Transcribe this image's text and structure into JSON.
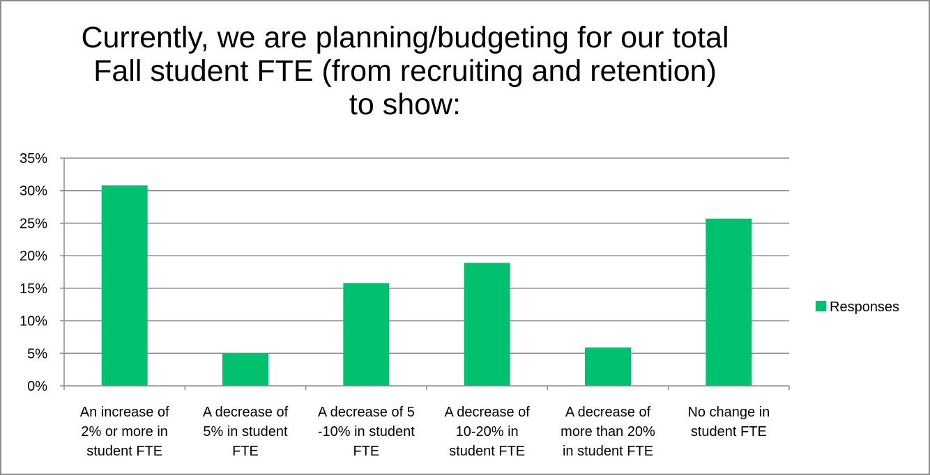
{
  "chart_data": {
    "type": "bar",
    "title": "Currently, we are planning/budgeting for our total\nFall student FTE (from recruiting and retention)\nto show:",
    "categories": [
      [
        "An increase of",
        "2% or more in",
        "student FTE"
      ],
      [
        "A decrease of",
        "5% in student",
        "FTE"
      ],
      [
        "A decrease of 5",
        "-10% in student",
        "FTE"
      ],
      [
        "A decrease of",
        "10-20% in",
        "student FTE"
      ],
      [
        "A decrease of",
        "more than 20%",
        "in student FTE"
      ],
      [
        "No change in",
        "student FTE"
      ]
    ],
    "series": [
      {
        "name": "Responses",
        "color": "#00c16e",
        "values": [
          30.8,
          5.0,
          15.8,
          18.9,
          5.9,
          25.7
        ]
      }
    ],
    "y_ticks": [
      "0%",
      "5%",
      "10%",
      "15%",
      "20%",
      "25%",
      "30%",
      "35%"
    ],
    "ylim": [
      0,
      35
    ],
    "grid": true,
    "legend_position": "right"
  }
}
